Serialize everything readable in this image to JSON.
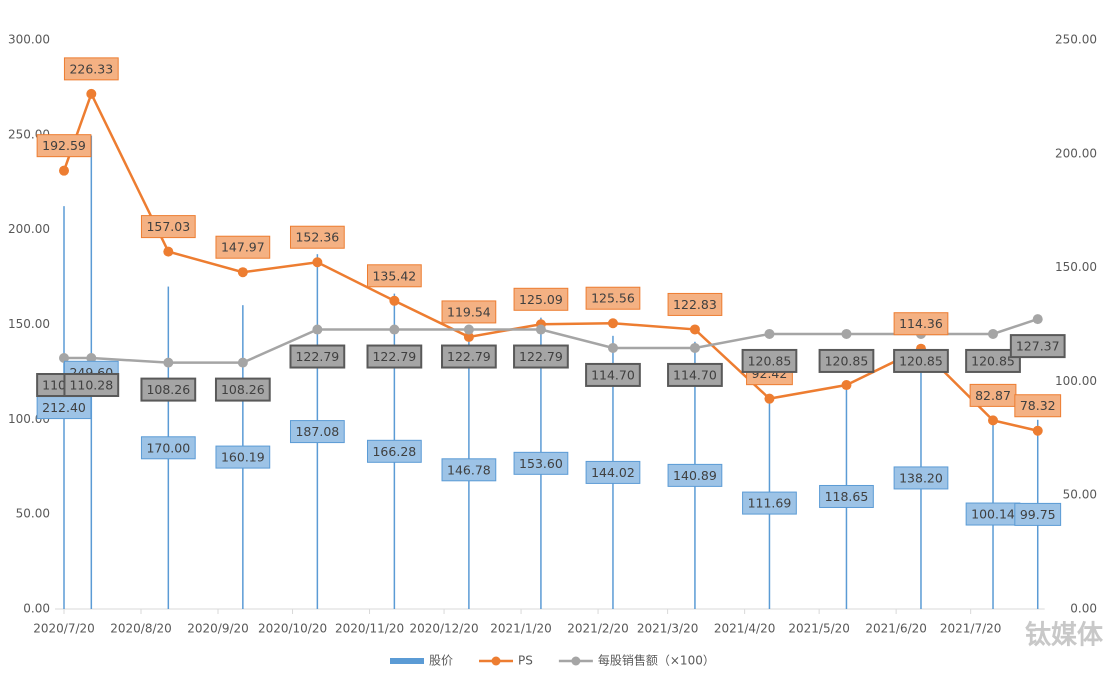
{
  "chart_data": {
    "type": "line",
    "x": [
      "2020/7/20",
      "2020/7/31",
      "2020/8/31",
      "2020/9/30",
      "2020/10/30",
      "2020/11/30",
      "2020/12/30",
      "2021/1/28",
      "2021/2/26",
      "2021/3/31",
      "2021/4/30",
      "2021/5/31",
      "2021/6/30",
      "2021/7/29",
      "2021/8/16"
    ],
    "xlim": [
      "2020/7/20",
      "2021/8/18"
    ],
    "xticks": [
      "2020/7/20",
      "2020/8/20",
      "2020/9/20",
      "2020/10/20",
      "2020/11/20",
      "2020/12/20",
      "2021/1/20",
      "2021/2/20",
      "2021/3/20",
      "2021/4/20",
      "2021/5/20",
      "2021/6/20",
      "2021/7/20"
    ],
    "ylim": [
      0,
      300
    ],
    "yticks": [
      {
        "value": 0,
        "label": "0.00"
      },
      {
        "value": 50,
        "label": "50.00"
      },
      {
        "value": 100,
        "label": "100.00"
      },
      {
        "value": 150,
        "label": "150.00"
      },
      {
        "value": 200,
        "label": "200.00"
      },
      {
        "value": 250,
        "label": "250.00"
      },
      {
        "value": 300,
        "label": "300.00"
      }
    ],
    "y2lim": [
      0,
      250
    ],
    "y2ticks": [
      {
        "value": 0,
        "label": "0.00"
      },
      {
        "value": 50,
        "label": "50.00"
      },
      {
        "value": 100,
        "label": "100.00"
      },
      {
        "value": 150,
        "label": "150.00"
      },
      {
        "value": 200,
        "label": "200.00"
      },
      {
        "value": 250,
        "label": "250.00"
      }
    ],
    "series": [
      {
        "name": "股价",
        "type": "bar",
        "color": "#5b9bd5",
        "values": [
          212.4,
          249.6,
          170.0,
          160.19,
          187.08,
          166.28,
          146.78,
          153.6,
          144.02,
          140.89,
          111.69,
          118.65,
          138.2,
          100.14,
          99.75
        ],
        "value_labels": [
          "212.40",
          "249.60",
          "170.00",
          "160.19",
          "187.08",
          "166.28",
          "146.78",
          "153.60",
          "144.02",
          "140.89",
          "111.69",
          "118.65",
          "138.20",
          "100.14",
          "99.75"
        ]
      },
      {
        "name": "PS",
        "type": "line",
        "axis": "y2",
        "color": "#ed7d31",
        "values": [
          192.59,
          226.33,
          157.03,
          147.97,
          152.36,
          135.42,
          119.54,
          125.09,
          125.56,
          122.83,
          92.42,
          98.4,
          114.36,
          82.87,
          78.32
        ],
        "value_labels": [
          "192.59",
          "226.33",
          "157.03",
          "147.97",
          "152.36",
          "135.42",
          "119.54",
          "125.09",
          "125.56",
          "122.83",
          "92.42",
          null,
          "114.36",
          "82.87",
          "78.32"
        ]
      },
      {
        "name": "每股销售额（×100）",
        "type": "line",
        "axis": "y2",
        "color": "#a5a5a5",
        "values": [
          110.28,
          110.28,
          108.26,
          108.26,
          122.79,
          122.79,
          122.79,
          122.79,
          114.7,
          114.7,
          120.85,
          120.85,
          120.85,
          120.85,
          127.37
        ],
        "value_labels": [
          "110.28",
          "110.28",
          "108.26",
          "108.26",
          "122.79",
          "122.79",
          "122.79",
          "122.79",
          "114.70",
          "114.70",
          "120.85",
          "120.85",
          "120.85",
          "120.85",
          "127.37"
        ]
      }
    ],
    "watermark": "钛媒体"
  }
}
